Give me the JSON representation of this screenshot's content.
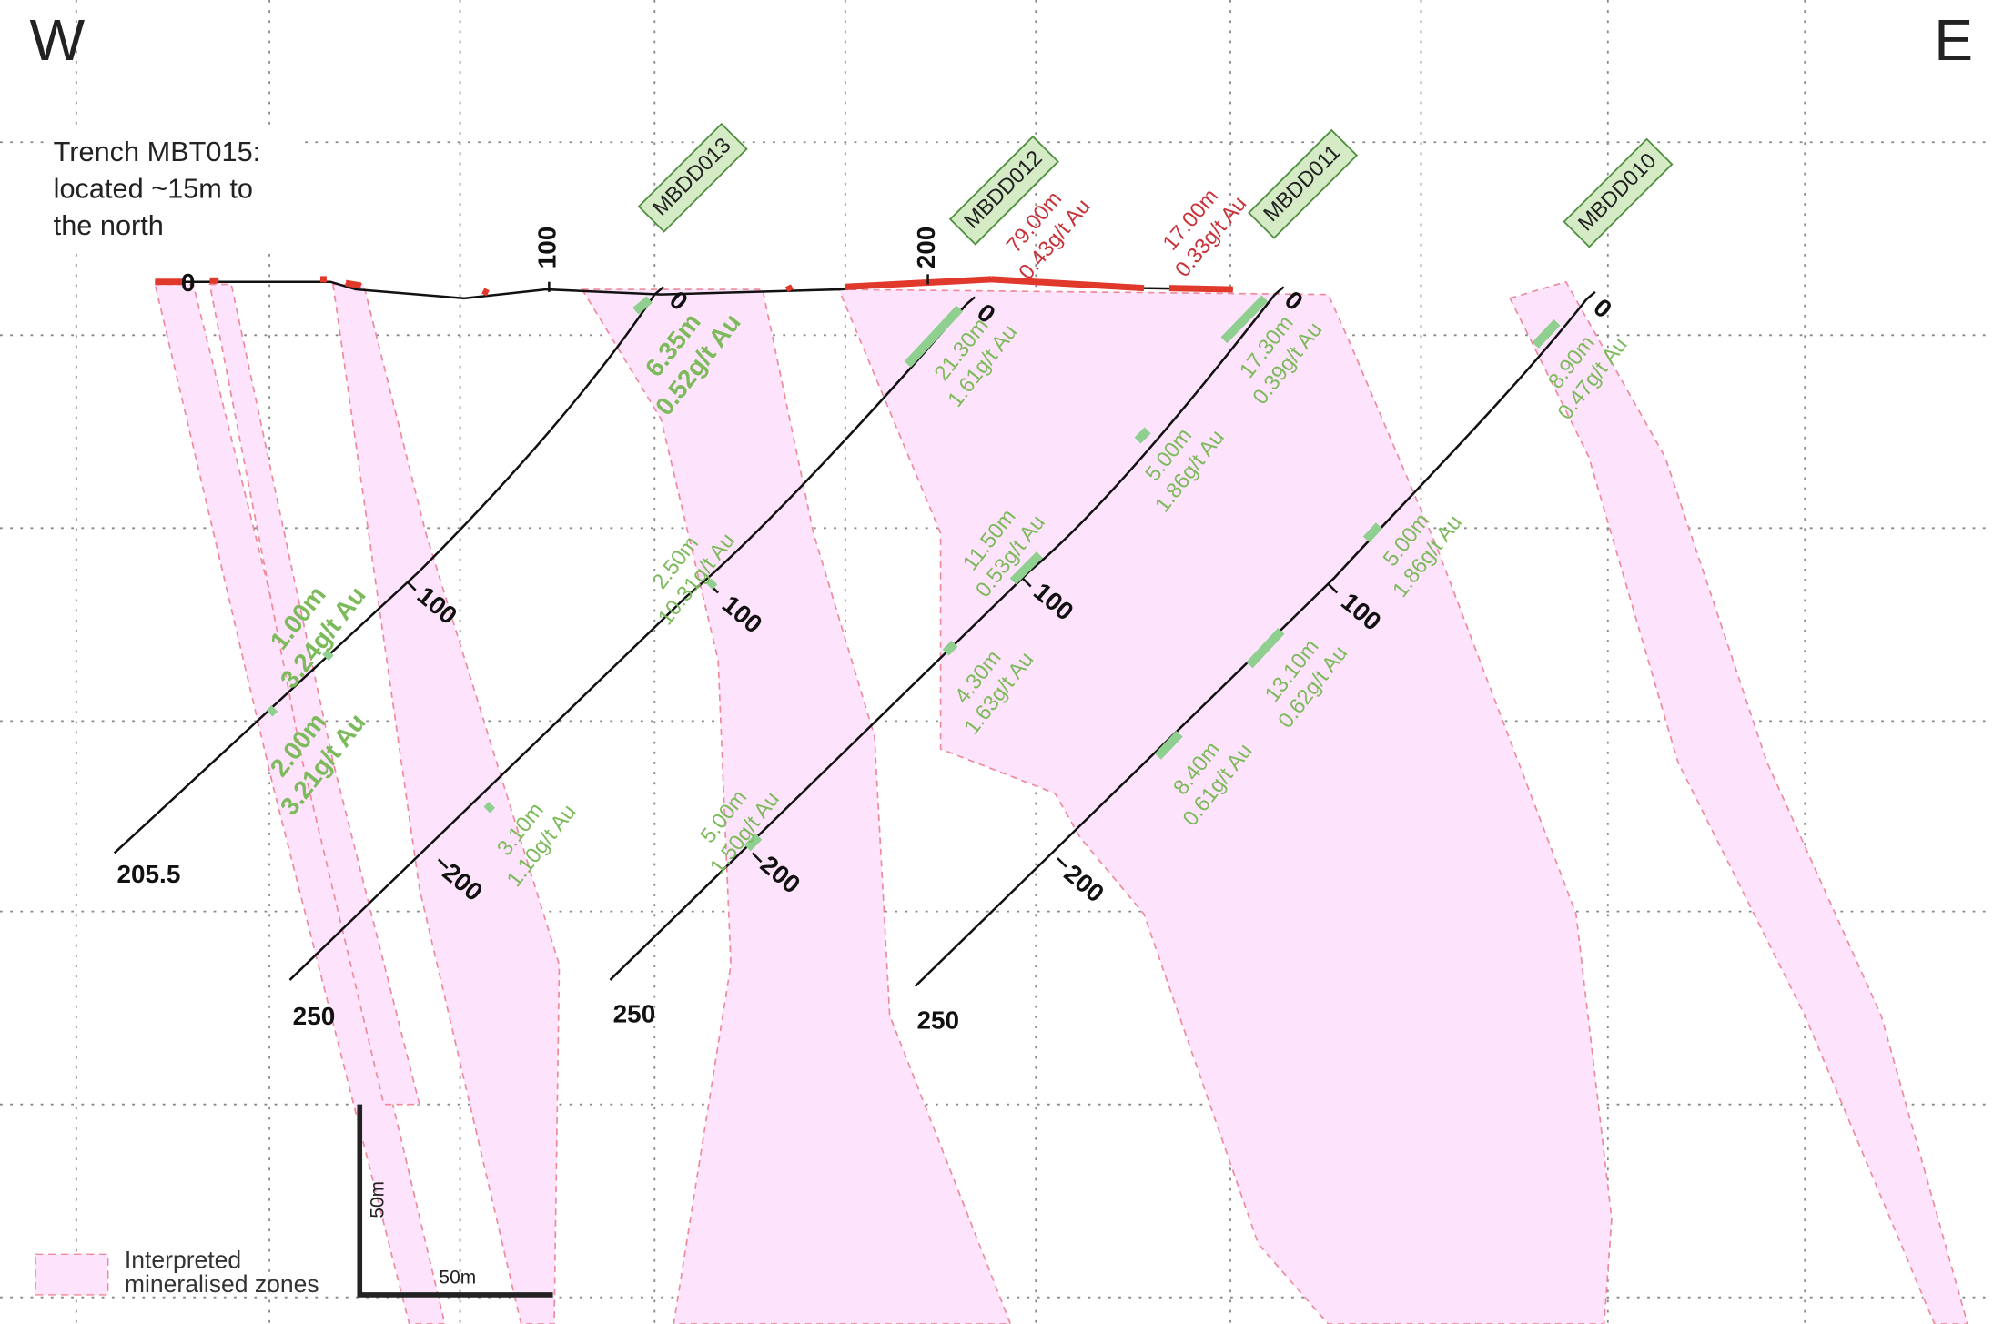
{
  "compass": {
    "west": "W",
    "east": "E"
  },
  "trench": {
    "note": [
      "Trench MBT015:",
      "located ~15m to",
      "the north"
    ],
    "depth_labels": [
      "0",
      "100",
      "200"
    ],
    "intercepts": [
      {
        "length": "79.00m",
        "grade": "0.43g/t Au"
      },
      {
        "length": "17.00m",
        "grade": "0.33g/t Au"
      }
    ]
  },
  "holes": [
    {
      "name": "MBDD013",
      "depth_labels": [
        "0",
        "100",
        "205.5"
      ],
      "intercepts": [
        {
          "length": "6.35m",
          "grade": "0.52g/t Au"
        },
        {
          "length": "1.00m",
          "grade": "3.24g/t Au"
        },
        {
          "length": "2.00m",
          "grade": "3.21g/t Au"
        }
      ]
    },
    {
      "name": "MBDD012",
      "depth_labels": [
        "0",
        "100",
        "200",
        "250"
      ],
      "intercepts": [
        {
          "length": "21.30m",
          "grade": "1.61g/t Au"
        },
        {
          "length": "2.50m",
          "grade": "10.31g/t Au"
        },
        {
          "length": "3.10m",
          "grade": "1.10g/t Au"
        }
      ]
    },
    {
      "name": "MBDD011",
      "depth_labels": [
        "0",
        "100",
        "200",
        "250"
      ],
      "intercepts": [
        {
          "length": "17.30m",
          "grade": "0.39g/t Au"
        },
        {
          "length": "5.00m",
          "grade": "1.86g/t Au"
        },
        {
          "length": "11.50m",
          "grade": "0.53g/t Au"
        },
        {
          "length": "4.30m",
          "grade": "1.63g/t Au"
        },
        {
          "length": "5.00m",
          "grade": "1.50g/t Au"
        }
      ]
    },
    {
      "name": "MBDD010",
      "depth_labels": [
        "0",
        "100",
        "200",
        "250"
      ],
      "intercepts": [
        {
          "length": "8.90m",
          "grade": "0.47g/t Au"
        },
        {
          "length": "5.00m",
          "grade": "1.86g/t Au"
        },
        {
          "length": "13.10m",
          "grade": "0.62g/t Au"
        },
        {
          "length": "8.40m",
          "grade": "0.61g/t Au"
        }
      ]
    }
  ],
  "legend": {
    "label": [
      "Interpreted",
      "mineralised zones"
    ]
  },
  "scale_bar": {
    "vertical": "50m",
    "horizontal": "50m"
  }
}
